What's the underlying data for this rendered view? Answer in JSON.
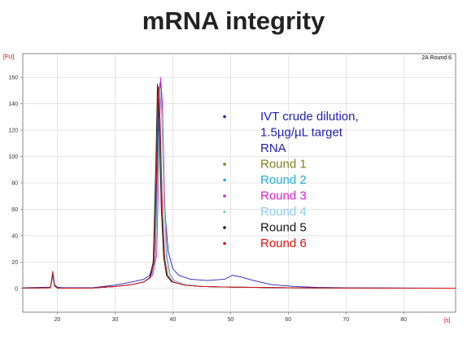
{
  "slide": {
    "title": "mRNA integrity"
  },
  "chart_data": {
    "type": "line",
    "title": "mRNA integrity",
    "corner_label": "2A Round 6",
    "x_unit": "[s]",
    "y_unit": "[FU]",
    "xlim": [
      14,
      89
    ],
    "ylim": [
      -18,
      178
    ],
    "x_ticks": [
      20,
      30,
      40,
      50,
      60,
      70,
      80
    ],
    "y_ticks": [
      0,
      20,
      40,
      60,
      80,
      100,
      120,
      140,
      160
    ],
    "grid": true,
    "legend_position": "inside-right",
    "series": [
      {
        "name": "IVT crude dilution, 1.5µg/µL target RNA",
        "name_lines": [
          "IVT crude dilution,",
          "1.5µg/µL target",
          "RNA"
        ],
        "color": "#1f1fb4",
        "x": [
          14,
          18.8,
          19.2,
          19.5,
          20,
          21,
          26,
          30,
          33,
          35,
          36,
          36.8,
          37.3,
          37.6,
          37.9,
          38.2,
          38.6,
          39.2,
          40,
          41,
          43,
          46,
          49,
          50.3,
          51.5,
          54,
          57,
          61,
          65,
          70,
          80,
          89
        ],
        "y": [
          0.5,
          1,
          12,
          3,
          0.8,
          0.5,
          0.5,
          2.5,
          5,
          7,
          10,
          22,
          85,
          150,
          158,
          130,
          60,
          28,
          15,
          10,
          7,
          6,
          7,
          10,
          9,
          6,
          3,
          1.5,
          0.8,
          0.5,
          0.3,
          0.2
        ]
      },
      {
        "name": "Round 1",
        "color": "#808020",
        "x": [
          14,
          18.8,
          19.2,
          19.5,
          20,
          21,
          26,
          30,
          33,
          35,
          36,
          36.6,
          37.1,
          37.4,
          37.7,
          38.1,
          38.5,
          39,
          40,
          42,
          45,
          50,
          60,
          70,
          89
        ],
        "y": [
          0.3,
          0.5,
          9,
          2,
          0.3,
          0.2,
          0.3,
          1.5,
          3,
          5,
          8,
          20,
          90,
          148,
          125,
          60,
          22,
          10,
          5,
          2.5,
          1.5,
          1,
          0.5,
          0.3,
          0.2
        ]
      },
      {
        "name": "Round 2",
        "color": "#22aadd",
        "x": [
          14,
          18.8,
          19.2,
          19.5,
          20,
          21,
          26,
          30,
          33,
          35,
          36.2,
          36.9,
          37.4,
          37.8,
          38.1,
          38.5,
          38.9,
          39.4,
          40.2,
          42,
          45,
          50,
          60,
          70,
          89
        ],
        "y": [
          0.3,
          0.5,
          10,
          2,
          0.3,
          0.2,
          0.3,
          1.5,
          3,
          5,
          9,
          22,
          90,
          150,
          130,
          62,
          24,
          11,
          6,
          3,
          1.5,
          1,
          0.5,
          0.3,
          0.2
        ]
      },
      {
        "name": "Round 3",
        "color": "#dd22cc",
        "x": [
          14,
          18.8,
          19.2,
          19.5,
          20,
          21,
          26,
          30,
          33,
          35,
          36.5,
          37.2,
          37.6,
          37.9,
          38.2,
          38.6,
          39,
          39.5,
          40.3,
          42,
          45,
          50,
          60,
          70,
          89
        ],
        "y": [
          0.3,
          0.5,
          10,
          2,
          0.3,
          0.2,
          0.3,
          1.5,
          3,
          5,
          10,
          25,
          95,
          160,
          140,
          66,
          25,
          11,
          6,
          3,
          1.5,
          1,
          0.5,
          0.3,
          0.2
        ]
      },
      {
        "name": "Round 4",
        "color": "#88ccee",
        "x": [
          14,
          18.8,
          19.2,
          19.5,
          20,
          21,
          26,
          30,
          33,
          35,
          36.3,
          37,
          37.5,
          37.85,
          38.15,
          38.55,
          39,
          39.5,
          40.3,
          42,
          45,
          50,
          60,
          70,
          89
        ],
        "y": [
          0.3,
          0.5,
          9,
          2,
          0.3,
          0.2,
          0.3,
          1.5,
          3,
          5,
          9,
          22,
          88,
          152,
          132,
          62,
          24,
          11,
          6,
          3,
          1.5,
          1,
          0.5,
          0.3,
          0.2
        ]
      },
      {
        "name": "Round 5",
        "color": "#111111",
        "x": [
          14,
          18.8,
          19.2,
          19.5,
          20,
          21,
          26,
          30,
          33,
          35,
          36,
          36.6,
          37.05,
          37.35,
          37.65,
          38,
          38.4,
          38.9,
          39.8,
          42,
          45,
          50,
          60,
          70,
          89
        ],
        "y": [
          0.3,
          0.5,
          11,
          2,
          0.3,
          0.2,
          0.3,
          1.5,
          3,
          5,
          8,
          20,
          92,
          155,
          128,
          62,
          24,
          10,
          5,
          2.5,
          1.5,
          1,
          0.5,
          0.3,
          0.2
        ]
      },
      {
        "name": "Round 6",
        "color": "#dd1111",
        "x": [
          14,
          18.8,
          19.2,
          19.5,
          20,
          21,
          26,
          30,
          33,
          35,
          36.1,
          36.8,
          37.2,
          37.5,
          37.8,
          38.2,
          38.6,
          39.1,
          40,
          42,
          45,
          50,
          60,
          70,
          89
        ],
        "y": [
          0.3,
          0.5,
          13,
          2,
          0.3,
          0.2,
          0.3,
          1.5,
          3,
          5,
          8,
          20,
          90,
          153,
          128,
          60,
          23,
          10,
          5,
          2.5,
          1.5,
          1,
          0.5,
          0.3,
          0.2
        ]
      }
    ]
  }
}
